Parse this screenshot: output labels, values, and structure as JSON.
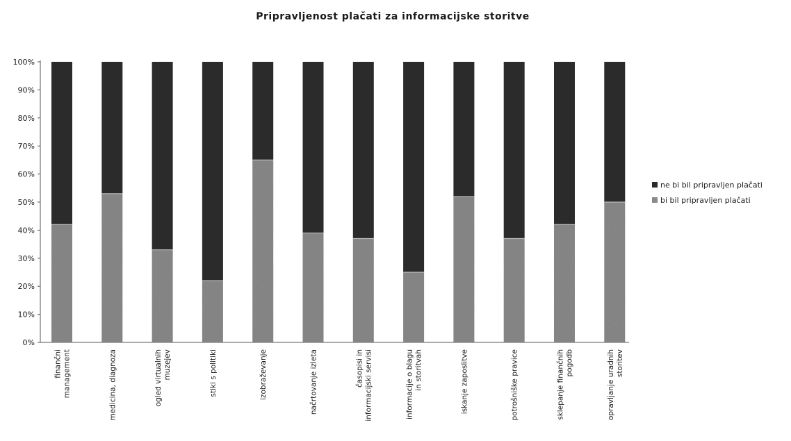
{
  "chart_data": {
    "type": "bar",
    "stacked": true,
    "title": "Pripravljenost plačati za informacijske storitve",
    "categories": [
      [
        "finančni",
        "management"
      ],
      [
        "medicina, diagnoza"
      ],
      [
        "ogled virtualnih",
        "muzejev"
      ],
      [
        "stiki s politiki"
      ],
      [
        "izobraževanje"
      ],
      [
        "načrtovanje izleta"
      ],
      [
        "časopisi in",
        "informacijski servisi"
      ],
      [
        "informacije o blagu",
        "in storitvah"
      ],
      [
        "iskanje zaposlitve"
      ],
      [
        "potrošniške pravice"
      ],
      [
        "sklepanje finančnih",
        "pogodb"
      ],
      [
        "opravljanje uradnih",
        "storitev"
      ]
    ],
    "series": [
      {
        "name": "bi bil pripravljen plačati",
        "color": "#8a8a8a",
        "values": [
          42,
          53,
          33,
          22,
          65,
          39,
          37,
          25,
          52,
          37,
          42,
          50
        ]
      },
      {
        "name": "ne bi bil pripravljen plačati",
        "color": "#2b2b2b",
        "values": [
          58,
          47,
          67,
          78,
          35,
          61,
          63,
          75,
          48,
          63,
          58,
          50
        ]
      }
    ],
    "legend_order": [
      "ne bi bil pripravljen plačati",
      "bi bil pripravljen plačati"
    ],
    "yticks": [
      "0%",
      "10%",
      "20%",
      "30%",
      "40%",
      "50%",
      "60%",
      "70%",
      "80%",
      "90%",
      "100%"
    ],
    "ylim": [
      0,
      100
    ],
    "grid": false,
    "legend_position": "right"
  }
}
